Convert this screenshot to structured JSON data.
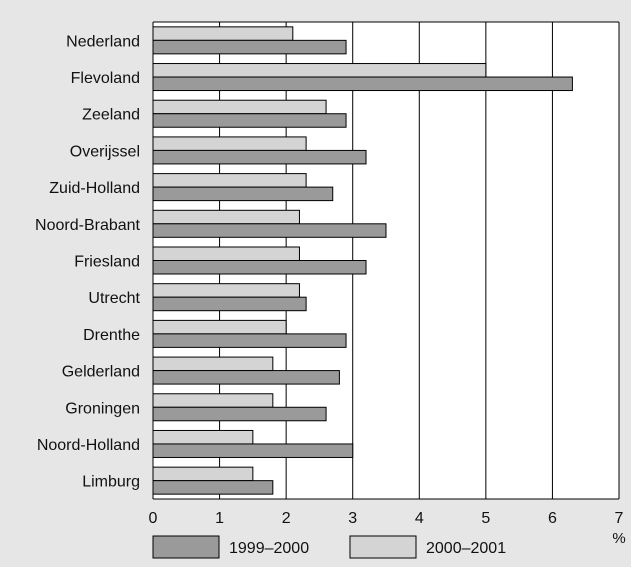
{
  "chart_data": {
    "type": "bar",
    "orientation": "horizontal",
    "categories": [
      "Nederland",
      "Flevoland",
      "Zeeland",
      "Overijssel",
      "Zuid-Holland",
      "Noord-Brabant",
      "Friesland",
      "Utrecht",
      "Drenthe",
      "Gelderland",
      "Groningen",
      "Noord-Holland",
      "Limburg"
    ],
    "series": [
      {
        "name": "1999–2000",
        "color": "#9a9a9a",
        "values": [
          2.9,
          6.3,
          2.9,
          3.2,
          2.7,
          3.5,
          3.2,
          2.3,
          2.9,
          2.8,
          2.6,
          3.0,
          1.8
        ]
      },
      {
        "name": "2000–2001",
        "color": "#d4d4d4",
        "values": [
          2.1,
          5.0,
          2.6,
          2.3,
          2.3,
          2.2,
          2.2,
          2.2,
          2.0,
          1.8,
          1.8,
          1.5,
          1.5
        ]
      }
    ],
    "xlim": [
      0,
      7
    ],
    "x_ticks": [
      "0",
      "1",
      "2",
      "3",
      "4",
      "5",
      "6",
      "7"
    ],
    "xunit": "%",
    "grid": true,
    "legend_position": "bottom"
  }
}
